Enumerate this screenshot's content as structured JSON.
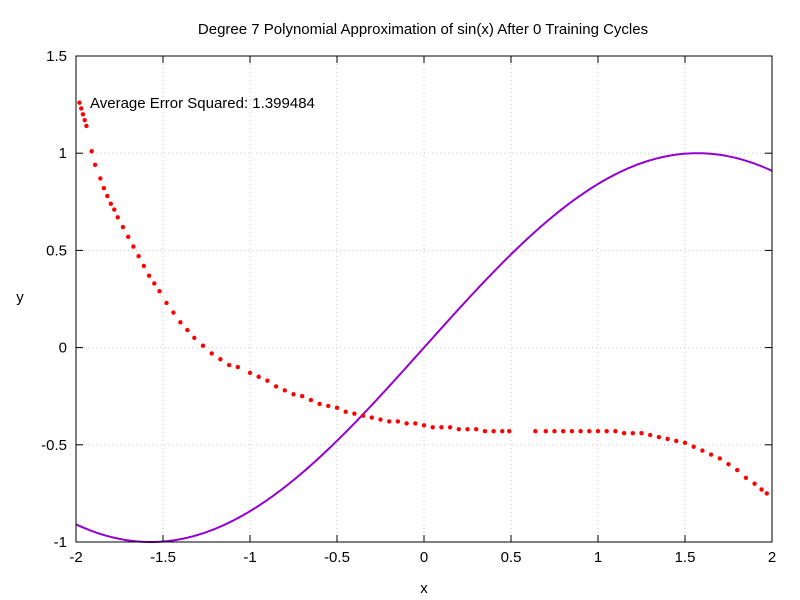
{
  "chart_data": {
    "type": "scatter",
    "title": "Degree 7 Polynomial Approximation of sin(x) After 0 Training Cycles",
    "xlabel": "x",
    "ylabel": "y",
    "xlim": [
      -2,
      2
    ],
    "ylim": [
      -1,
      1.5
    ],
    "x_ticks": [
      -2,
      -1.5,
      -1,
      -0.5,
      0,
      0.5,
      1,
      1.5,
      2
    ],
    "x_tick_labels": [
      "-2",
      "-1.5",
      "-1",
      "-0.5",
      "0",
      "0.5",
      "1",
      "1.5",
      "2"
    ],
    "y_ticks": [
      -1,
      -0.5,
      0,
      0.5,
      1,
      1.5
    ],
    "y_tick_labels": [
      "-1",
      "-0.5",
      "0",
      "0.5",
      "1",
      "1.5"
    ],
    "grid": true,
    "annotation": "Average Error Squared: 1.399484",
    "series": [
      {
        "kind": "line",
        "function": "sin(x)",
        "color": "#9400d3"
      },
      {
        "kind": "points",
        "color": "#ff0000",
        "points": [
          [
            -1.98,
            1.26
          ],
          [
            -1.97,
            1.23
          ],
          [
            -1.96,
            1.2
          ],
          [
            -1.95,
            1.17
          ],
          [
            -1.94,
            1.14
          ],
          [
            -1.91,
            1.01
          ],
          [
            -1.89,
            0.94
          ],
          [
            -1.86,
            0.87
          ],
          [
            -1.84,
            0.82
          ],
          [
            -1.82,
            0.78
          ],
          [
            -1.8,
            0.74
          ],
          [
            -1.78,
            0.71
          ],
          [
            -1.76,
            0.67
          ],
          [
            -1.73,
            0.62
          ],
          [
            -1.7,
            0.57
          ],
          [
            -1.67,
            0.52
          ],
          [
            -1.64,
            0.47
          ],
          [
            -1.61,
            0.42
          ],
          [
            -1.58,
            0.37
          ],
          [
            -1.55,
            0.33
          ],
          [
            -1.52,
            0.29
          ],
          [
            -1.48,
            0.23
          ],
          [
            -1.44,
            0.18
          ],
          [
            -1.4,
            0.13
          ],
          [
            -1.36,
            0.09
          ],
          [
            -1.32,
            0.05
          ],
          [
            -1.27,
            0.01
          ],
          [
            -1.22,
            -0.03
          ],
          [
            -1.17,
            -0.06
          ],
          [
            -1.12,
            -0.09
          ],
          [
            -1.07,
            -0.1
          ],
          [
            -1.0,
            -0.13
          ],
          [
            -0.95,
            -0.15
          ],
          [
            -0.9,
            -0.17
          ],
          [
            -0.85,
            -0.2
          ],
          [
            -0.8,
            -0.22
          ],
          [
            -0.75,
            -0.24
          ],
          [
            -0.7,
            -0.25
          ],
          [
            -0.65,
            -0.27
          ],
          [
            -0.6,
            -0.29
          ],
          [
            -0.55,
            -0.3
          ],
          [
            -0.5,
            -0.31
          ],
          [
            -0.45,
            -0.33
          ],
          [
            -0.4,
            -0.34
          ],
          [
            -0.35,
            -0.35
          ],
          [
            -0.3,
            -0.36
          ],
          [
            -0.25,
            -0.37
          ],
          [
            -0.2,
            -0.38
          ],
          [
            -0.15,
            -0.38
          ],
          [
            -0.1,
            -0.39
          ],
          [
            -0.05,
            -0.39
          ],
          [
            0.0,
            -0.4
          ],
          [
            0.05,
            -0.41
          ],
          [
            0.1,
            -0.41
          ],
          [
            0.15,
            -0.41
          ],
          [
            0.2,
            -0.42
          ],
          [
            0.25,
            -0.42
          ],
          [
            0.3,
            -0.42
          ],
          [
            0.35,
            -0.43
          ],
          [
            0.4,
            -0.43
          ],
          [
            0.45,
            -0.43
          ],
          [
            0.49,
            -0.43
          ],
          [
            0.64,
            -0.43
          ],
          [
            0.7,
            -0.43
          ],
          [
            0.75,
            -0.43
          ],
          [
            0.8,
            -0.43
          ],
          [
            0.85,
            -0.43
          ],
          [
            0.9,
            -0.43
          ],
          [
            0.95,
            -0.43
          ],
          [
            1.0,
            -0.43
          ],
          [
            1.05,
            -0.43
          ],
          [
            1.1,
            -0.43
          ],
          [
            1.15,
            -0.44
          ],
          [
            1.2,
            -0.44
          ],
          [
            1.25,
            -0.44
          ],
          [
            1.3,
            -0.45
          ],
          [
            1.35,
            -0.46
          ],
          [
            1.4,
            -0.47
          ],
          [
            1.45,
            -0.48
          ],
          [
            1.5,
            -0.49
          ],
          [
            1.55,
            -0.51
          ],
          [
            1.6,
            -0.53
          ],
          [
            1.65,
            -0.55
          ],
          [
            1.7,
            -0.57
          ],
          [
            1.75,
            -0.6
          ],
          [
            1.8,
            -0.63
          ],
          [
            1.85,
            -0.67
          ],
          [
            1.9,
            -0.7
          ],
          [
            1.94,
            -0.73
          ],
          [
            1.97,
            -0.75
          ]
        ]
      }
    ]
  }
}
